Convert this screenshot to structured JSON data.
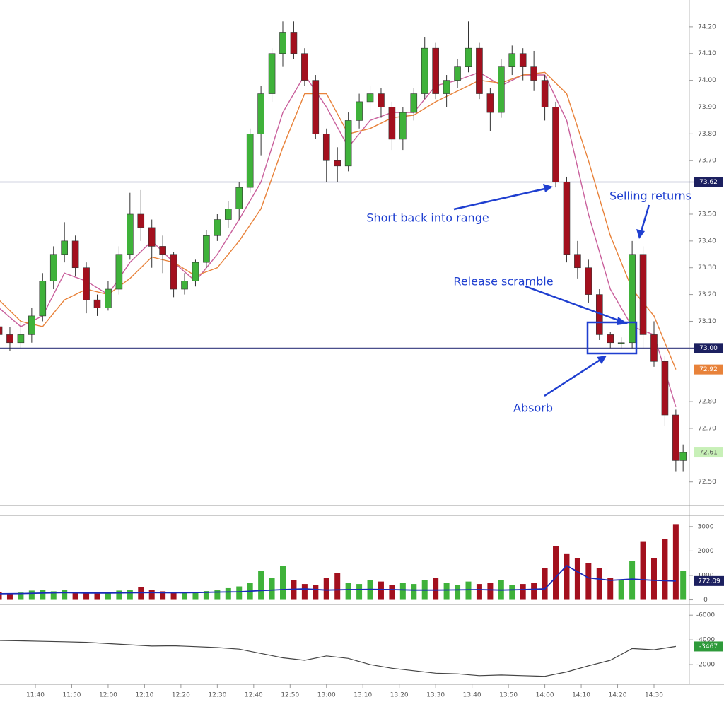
{
  "chart_data": {
    "type": "candlestick",
    "x": [
      "11:30",
      "11:33",
      "11:36",
      "11:39",
      "11:42",
      "11:45",
      "11:48",
      "11:51",
      "11:54",
      "11:57",
      "12:00",
      "12:03",
      "12:06",
      "12:09",
      "12:12",
      "12:15",
      "12:18",
      "12:21",
      "12:24",
      "12:27",
      "12:30",
      "12:33",
      "12:36",
      "12:39",
      "12:42",
      "12:45",
      "12:48",
      "12:51",
      "12:54",
      "12:57",
      "13:00",
      "13:03",
      "13:06",
      "13:09",
      "13:12",
      "13:15",
      "13:18",
      "13:21",
      "13:24",
      "13:27",
      "13:30",
      "13:33",
      "13:36",
      "13:39",
      "13:42",
      "13:45",
      "13:48",
      "13:51",
      "13:54",
      "13:57",
      "14:00",
      "14:03",
      "14:06",
      "14:09",
      "14:12",
      "14:15",
      "14:18",
      "14:21",
      "14:24",
      "14:27",
      "14:30",
      "14:33",
      "14:36",
      "14:38"
    ],
    "open": [
      73.08,
      73.05,
      73.02,
      73.05,
      73.12,
      73.25,
      73.35,
      73.4,
      73.3,
      73.18,
      73.15,
      73.22,
      73.35,
      73.5,
      73.45,
      73.38,
      73.35,
      73.22,
      73.25,
      73.32,
      73.42,
      73.48,
      73.52,
      73.6,
      73.8,
      73.95,
      74.1,
      74.18,
      74.1,
      74.0,
      73.8,
      73.7,
      73.68,
      73.85,
      73.92,
      73.95,
      73.9,
      73.78,
      73.88,
      73.95,
      74.12,
      73.95,
      74.0,
      74.05,
      74.12,
      73.95,
      73.88,
      74.05,
      74.1,
      74.05,
      74.0,
      73.9,
      73.62,
      73.35,
      73.3,
      73.2,
      73.05,
      73.02,
      73.02,
      73.35,
      73.05,
      72.95,
      72.75,
      72.58
    ],
    "high": [
      73.12,
      73.08,
      73.1,
      73.15,
      73.28,
      73.38,
      73.47,
      73.42,
      73.32,
      73.2,
      73.25,
      73.38,
      73.58,
      73.59,
      73.48,
      73.42,
      73.36,
      73.28,
      73.33,
      73.44,
      73.5,
      73.55,
      73.62,
      73.82,
      73.98,
      74.12,
      74.22,
      74.22,
      74.12,
      74.02,
      73.82,
      73.75,
      73.88,
      73.95,
      73.98,
      73.97,
      73.92,
      73.9,
      73.97,
      74.16,
      74.14,
      74.02,
      74.08,
      74.22,
      74.14,
      73.97,
      74.08,
      74.13,
      74.12,
      74.11,
      74.02,
      73.92,
      73.64,
      73.4,
      73.33,
      73.22,
      73.06,
      73.04,
      73.4,
      73.38,
      73.1,
      72.97,
      72.77,
      72.64
    ],
    "low": [
      73.0,
      72.99,
      73.0,
      73.02,
      73.1,
      73.22,
      73.32,
      73.27,
      73.13,
      73.12,
      73.14,
      73.2,
      73.33,
      73.4,
      73.3,
      73.28,
      73.19,
      73.2,
      73.23,
      73.3,
      73.4,
      73.45,
      73.48,
      73.58,
      73.72,
      73.92,
      74.05,
      74.08,
      73.98,
      73.78,
      73.62,
      73.62,
      73.66,
      73.82,
      73.88,
      73.86,
      73.74,
      73.74,
      73.85,
      73.93,
      73.93,
      73.9,
      73.97,
      74.03,
      73.93,
      73.81,
      73.86,
      74.02,
      74.0,
      73.96,
      73.85,
      73.6,
      73.32,
      73.26,
      73.17,
      73.03,
      73.0,
      73.0,
      73.0,
      73.0,
      72.93,
      72.71,
      72.54,
      72.54
    ],
    "close": [
      73.05,
      73.02,
      73.05,
      73.12,
      73.25,
      73.35,
      73.4,
      73.3,
      73.18,
      73.15,
      73.22,
      73.35,
      73.5,
      73.45,
      73.38,
      73.35,
      73.22,
      73.25,
      73.32,
      73.42,
      73.48,
      73.52,
      73.6,
      73.8,
      73.95,
      74.1,
      74.18,
      74.1,
      74.0,
      73.8,
      73.7,
      73.68,
      73.85,
      73.92,
      73.95,
      73.9,
      73.78,
      73.88,
      73.95,
      74.12,
      73.95,
      74.0,
      74.05,
      74.12,
      73.95,
      73.88,
      74.05,
      74.1,
      74.05,
      74.0,
      73.9,
      73.62,
      73.35,
      73.3,
      73.2,
      73.05,
      73.02,
      73.02,
      73.35,
      73.05,
      72.95,
      72.75,
      72.58,
      72.61
    ],
    "up_color": "#3fb23a",
    "down_color": "#a3101e",
    "ylim": [
      72.42,
      74.3
    ],
    "yticks": [
      {
        "value": 72.5,
        "label": "72.50"
      },
      {
        "value": 72.7,
        "label": "72.70"
      },
      {
        "value": 72.8,
        "label": "72.80"
      },
      {
        "value": 73.1,
        "label": "73.10"
      },
      {
        "value": 73.2,
        "label": "73.20"
      },
      {
        "value": 73.3,
        "label": "73.30"
      },
      {
        "value": 73.4,
        "label": "73.40"
      },
      {
        "value": 73.5,
        "label": "73.50"
      },
      {
        "value": 73.7,
        "label": "73.70"
      },
      {
        "value": 73.8,
        "label": "73.80"
      },
      {
        "value": 73.9,
        "label": "73.90"
      },
      {
        "value": 74,
        "label": "74.00"
      },
      {
        "value": 74.1,
        "label": "74.10"
      },
      {
        "value": 74.2,
        "label": "74.20"
      }
    ],
    "levels": [
      73.62,
      {
        "value": 73,
        "label": "73.00"
      }
    ],
    "ma_x": [
      "11:30",
      "11:36",
      "11:42",
      "11:48",
      "11:54",
      "12:00",
      "12:06",
      "12:12",
      "12:18",
      "12:24",
      "12:30",
      "12:36",
      "12:42",
      "12:48",
      "12:54",
      "13:00",
      "13:06",
      "13:12",
      "13:18",
      "13:24",
      "13:30",
      "13:36",
      "13:42",
      "13:48",
      "13:54",
      "14:00",
      "14:06",
      "14:12",
      "14:18",
      "14:24",
      "14:30",
      "14:36"
    ],
    "ma_series": [
      {
        "color": "#c9609c",
        "values": [
          73.15,
          73.08,
          73.12,
          73.28,
          73.25,
          73.2,
          73.32,
          73.4,
          73.32,
          73.25,
          73.35,
          73.48,
          73.62,
          73.88,
          74.02,
          73.9,
          73.75,
          73.85,
          73.88,
          73.88,
          73.98,
          74.0,
          74.03,
          73.98,
          74.02,
          74.02,
          73.85,
          73.5,
          73.22,
          73.08,
          73.05,
          72.78
        ]
      },
      {
        "color": "#e8823a",
        "values": [
          73.18,
          73.1,
          73.08,
          73.18,
          73.22,
          73.2,
          73.26,
          73.34,
          73.32,
          73.27,
          73.3,
          73.4,
          73.52,
          73.75,
          73.95,
          73.95,
          73.8,
          73.82,
          73.86,
          73.87,
          73.92,
          73.96,
          74.0,
          73.99,
          74.02,
          74.03,
          73.95,
          73.7,
          73.42,
          73.22,
          73.12,
          72.92
        ]
      }
    ],
    "annotations": [
      "Short back into range",
      "Selling returns",
      "Release scramble",
      "Absorb"
    ],
    "volume": [
      320,
      250,
      300,
      380,
      420,
      350,
      400,
      300,
      280,
      260,
      330,
      380,
      420,
      520,
      400,
      350,
      330,
      300,
      320,
      360,
      420,
      480,
      550,
      700,
      1200,
      900,
      1400,
      800,
      650,
      600,
      900,
      1100,
      700,
      650,
      800,
      750,
      600,
      700,
      650,
      800,
      900,
      700,
      600,
      750,
      650,
      700,
      800,
      600,
      650,
      700,
      1300,
      2200,
      1900,
      1700,
      1500,
      1300,
      900,
      800,
      1600,
      2400,
      1700,
      2500,
      3100,
      1200
    ],
    "volume_ma": {
      "color": "#1a2bb8",
      "values": [
        250,
        260,
        280,
        300,
        280,
        280,
        290,
        300,
        290,
        300,
        320,
        330,
        380,
        420,
        450,
        400,
        420,
        430,
        420,
        400,
        400,
        410,
        420,
        400,
        420,
        450,
        1400,
        900,
        800,
        850,
        800,
        772.09
      ]
    },
    "volume_ylim": [
      -100,
      3400
    ],
    "volume_yticks": [
      0,
      1000,
      2000,
      3000
    ],
    "delta": {
      "color": "#444",
      "values": [
        -3950,
        -3920,
        -3880,
        -3850,
        -3800,
        -3700,
        -3600,
        -3500,
        -3520,
        -3450,
        -3380,
        -3250,
        -2900,
        -2550,
        -2350,
        -2700,
        -2500,
        -2000,
        -1700,
        -1500,
        -1300,
        -1250,
        -1100,
        -1150,
        -1100,
        -1050,
        -1400,
        -1900,
        -2350,
        -3300,
        -3200,
        -3467
      ]
    },
    "delta_ylim": [
      -400,
      -6700
    ],
    "delta_yticks": [
      -2000,
      -4000,
      -6000
    ],
    "xticks": [
      "11:40",
      "11:50",
      "12:00",
      "12:10",
      "12:20",
      "12:30",
      "12:40",
      "12:50",
      "13:00",
      "13:10",
      "13:20",
      "13:30",
      "13:40",
      "13:50",
      "14:00",
      "14:10",
      "14:20",
      "14:30"
    ]
  }
}
